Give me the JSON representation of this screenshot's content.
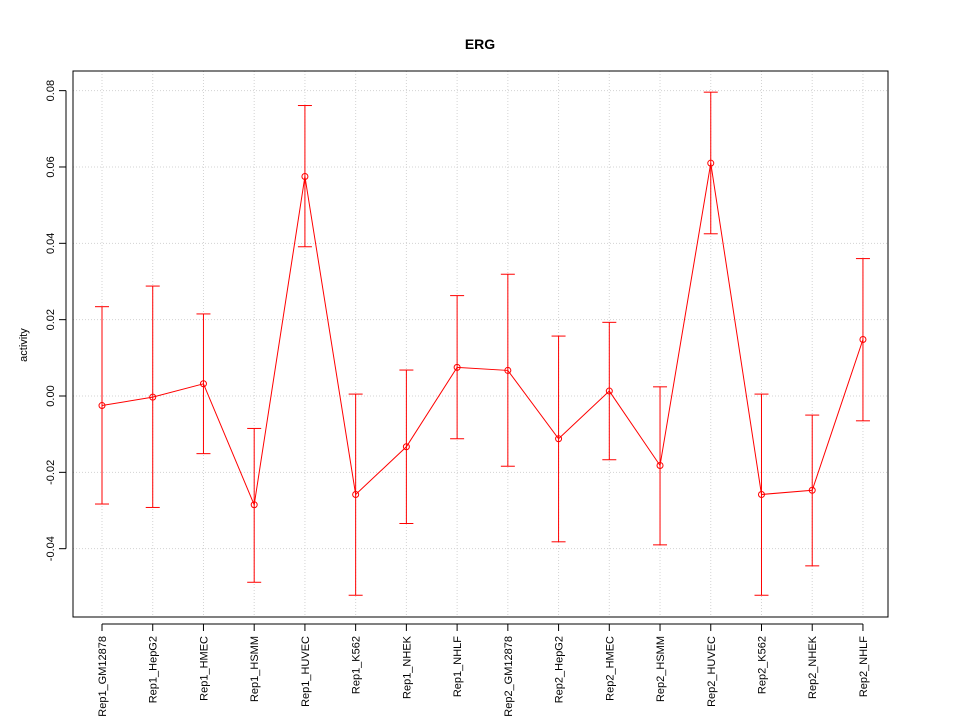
{
  "chart_data": {
    "type": "line",
    "title": "ERG",
    "xlabel": "",
    "ylabel": "activity",
    "ylim": [
      -0.058,
      0.085
    ],
    "yticks": [
      -0.04,
      -0.02,
      0.0,
      0.02,
      0.04,
      0.06,
      0.08
    ],
    "ytick_labels": [
      "-0.04",
      "-0.02",
      "0.00",
      "0.02",
      "0.04",
      "0.06",
      "0.08"
    ],
    "grid": true,
    "categories": [
      "Rep1_GM12878",
      "Rep1_HepG2",
      "Rep1_HMEC",
      "Rep1_HSMM",
      "Rep1_HUVEC",
      "Rep1_K562",
      "Rep1_NHEK",
      "Rep1_NHLF",
      "Rep2_GM12878",
      "Rep2_HepG2",
      "Rep2_HMEC",
      "Rep2_HSMM",
      "Rep2_HUVEC",
      "Rep2_K562",
      "Rep2_NHEK",
      "Rep2_NHLF"
    ],
    "series": [
      {
        "name": "activity",
        "color": "#ff0000",
        "values": [
          -0.0025,
          -0.0003,
          0.0032,
          -0.0285,
          0.0575,
          -0.0258,
          -0.0133,
          0.0075,
          0.0067,
          -0.0112,
          0.0013,
          -0.0182,
          0.061,
          -0.0258,
          -0.0247,
          0.0148
        ],
        "error_low": [
          -0.0283,
          -0.0292,
          -0.0151,
          -0.0488,
          0.0391,
          -0.0522,
          -0.0334,
          -0.0112,
          -0.0184,
          -0.0382,
          -0.0167,
          -0.039,
          0.0425,
          -0.0522,
          -0.0445,
          -0.0065
        ],
        "error_high": [
          0.0234,
          0.0288,
          0.0215,
          -0.0085,
          0.0761,
          0.0005,
          0.0068,
          0.0263,
          0.0319,
          0.0157,
          0.0193,
          0.0024,
          0.0796,
          0.0005,
          -0.005,
          0.036
        ]
      }
    ]
  }
}
